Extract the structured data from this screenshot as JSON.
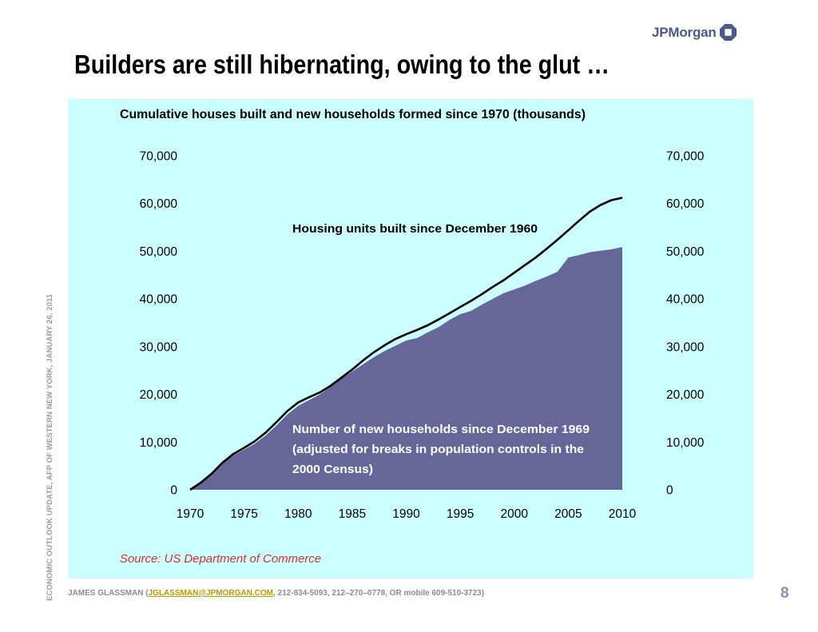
{
  "brand": {
    "name": "JPMorgan"
  },
  "slide": {
    "title": "Builders are still hibernating, owing to the glut …",
    "side_label": "ECONOMIC OUTLOOK UPDATE, AFP OF WESTERN NEW YORK, JANUARY 26, 2011",
    "page_number": "8"
  },
  "footer": {
    "prefix": "JAMES GLASSMAN (",
    "email": "JGLASSMAN@JPMORGAN.COM",
    "suffix": ", 212-834-5093, 212–270–0778, OR mobile 609-510-3723)"
  },
  "colors": {
    "panel_bg": "#ccffff",
    "households_fill": "#666699",
    "housing_line": "#000000",
    "source_text": "#cc3333"
  },
  "chart_data": {
    "type": "area",
    "title": "Cumulative houses built and new households formed since 1970 (thousands)",
    "source": "Source: US Department of Commerce",
    "x_ticks": [
      "1970",
      "1975",
      "1980",
      "1985",
      "1990",
      "1995",
      "2000",
      "2005",
      "2010"
    ],
    "y_ticks": [
      "0",
      "10,000",
      "20,000",
      "30,000",
      "40,000",
      "50,000",
      "60,000",
      "70,000"
    ],
    "xlim": [
      1970,
      2010
    ],
    "ylim": [
      0,
      70000
    ],
    "dual_y_axis": true,
    "grid": false,
    "series": [
      {
        "name": "Housing units built since December 1960",
        "label_lines": [
          "Housing units built since December 1960"
        ],
        "kind": "line",
        "x": [
          1970,
          1971,
          1972,
          1973,
          1974,
          1975,
          1976,
          1977,
          1978,
          1979,
          1980,
          1981,
          1982,
          1983,
          1984,
          1985,
          1986,
          1987,
          1988,
          1989,
          1990,
          1991,
          1992,
          1993,
          1994,
          1995,
          1996,
          1997,
          1998,
          1999,
          2000,
          2001,
          2002,
          2003,
          2004,
          2005,
          2006,
          2007,
          2008,
          2009,
          2010
        ],
        "values": [
          0,
          1500,
          3400,
          5700,
          7500,
          8800,
          10200,
          12000,
          14200,
          16500,
          18300,
          19400,
          20400,
          21800,
          23500,
          25200,
          27100,
          28800,
          30300,
          31600,
          32600,
          33500,
          34500,
          35700,
          37000,
          38300,
          39600,
          41000,
          42500,
          43900,
          45500,
          47100,
          48700,
          50500,
          52400,
          54400,
          56400,
          58300,
          59700,
          60700,
          61200
        ]
      },
      {
        "name": "Number of new households since December 1969",
        "label_lines": [
          "Number of new households since December 1969",
          "(adjusted for breaks in population controls in the",
          "2000 Census)"
        ],
        "kind": "area",
        "x": [
          1970,
          1971,
          1972,
          1973,
          1974,
          1975,
          1976,
          1977,
          1978,
          1979,
          1980,
          1981,
          1982,
          1983,
          1984,
          1985,
          1986,
          1987,
          1988,
          1989,
          1990,
          1991,
          1992,
          1993,
          1994,
          1995,
          1996,
          1997,
          1998,
          1999,
          2000,
          2001,
          2002,
          2003,
          2004,
          2005,
          2006,
          2007,
          2008,
          2009,
          2010
        ],
        "values": [
          0,
          1500,
          3300,
          5500,
          7200,
          8400,
          9700,
          11400,
          13500,
          15800,
          17600,
          18800,
          20000,
          21600,
          23300,
          24800,
          26300,
          27800,
          29100,
          30200,
          31300,
          31800,
          33000,
          34100,
          35600,
          36800,
          37500,
          38800,
          40000,
          41200,
          42000,
          42800,
          43800,
          44700,
          45700,
          48700,
          49200,
          49800,
          50100,
          50400,
          50900
        ]
      }
    ]
  }
}
